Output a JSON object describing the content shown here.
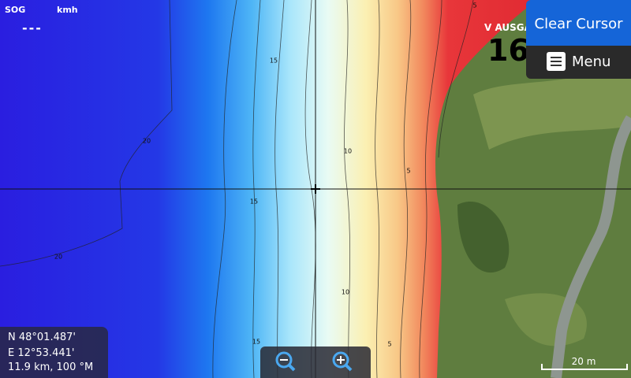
{
  "header": {
    "sog_label": "SOG",
    "sog_unit": "kmh",
    "sog_value": "---"
  },
  "speed_panel": {
    "label": "V AUSGA",
    "value": "16."
  },
  "buttons": {
    "clear_cursor": "Clear Cursor",
    "menu": "Menu"
  },
  "contour_labels": [
    "5",
    "15",
    "20",
    "10",
    "5",
    "15",
    "20",
    "10",
    "15",
    "5"
  ],
  "position": {
    "latitude": "N  48°01.487'",
    "longitude": "E  12°53.441'",
    "range_bearing": "11.9 km, 100 °M"
  },
  "scale": {
    "label": "20 m"
  }
}
